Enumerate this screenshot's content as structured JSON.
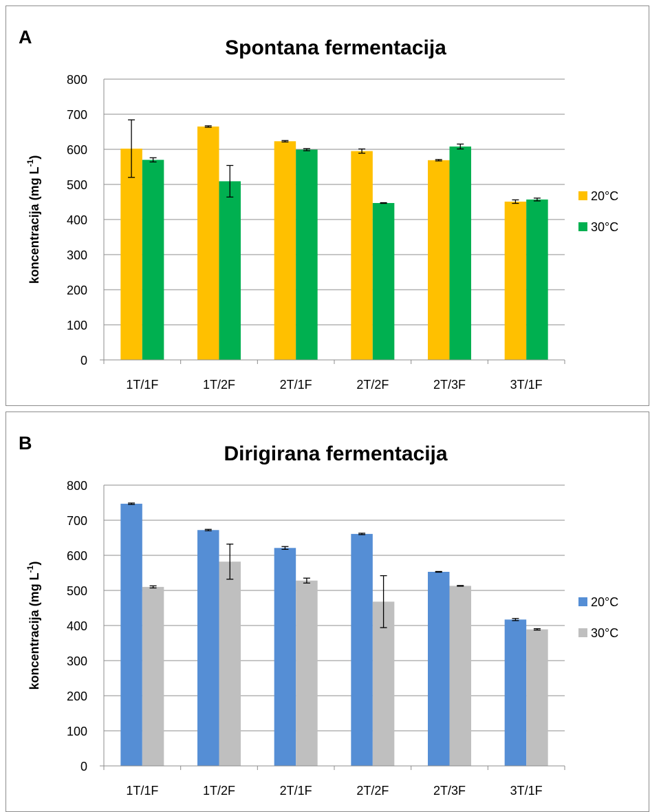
{
  "chart_data": [
    {
      "type": "bar",
      "panel_letter": "A",
      "title": "Spontana fermentacija",
      "ylabel_main": "koncentracija (mg L",
      "ylabel_sup": "-1",
      "ylabel_close": ")",
      "categories": [
        "1T/1F",
        "1T/2F",
        "2T/1F",
        "2T/2F",
        "2T/3F",
        "3T/1F"
      ],
      "ylim": [
        0,
        800
      ],
      "yticks": [
        "0",
        "100",
        "200",
        "300",
        "400",
        "500",
        "600",
        "700",
        "800"
      ],
      "grid": true,
      "legend_position": "right",
      "series": [
        {
          "name": "20°C",
          "color": "#FFC000",
          "values": [
            602,
            665,
            623,
            595,
            569,
            451
          ],
          "errors": [
            82,
            2,
            2,
            6,
            2,
            5
          ]
        },
        {
          "name": "30°C",
          "color": "#00B050",
          "values": [
            570,
            509,
            599,
            447,
            608,
            457
          ],
          "errors": [
            6,
            45,
            3,
            1,
            7,
            4
          ]
        }
      ]
    },
    {
      "type": "bar",
      "panel_letter": "B",
      "title": "Dirigirana fermentacija",
      "ylabel_main": "koncentracija (mg L",
      "ylabel_sup": "-1",
      "ylabel_close": ")",
      "categories": [
        "1T/1F",
        "1T/2F",
        "2T/1F",
        "2T/2F",
        "2T/3F",
        "3T/1F"
      ],
      "ylim": [
        0,
        800
      ],
      "yticks": [
        "0",
        "100",
        "200",
        "300",
        "400",
        "500",
        "600",
        "700",
        "800"
      ],
      "grid": true,
      "legend_position": "right",
      "series": [
        {
          "name": "20°C",
          "color": "#558ED5",
          "values": [
            747,
            672,
            621,
            661,
            553,
            417
          ],
          "errors": [
            2,
            2,
            4,
            2,
            1,
            3
          ]
        },
        {
          "name": "30°C",
          "color": "#BFBFBF",
          "values": [
            510,
            582,
            528,
            468,
            513,
            389
          ],
          "errors": [
            3,
            50,
            7,
            74,
            1,
            2
          ]
        }
      ]
    }
  ]
}
